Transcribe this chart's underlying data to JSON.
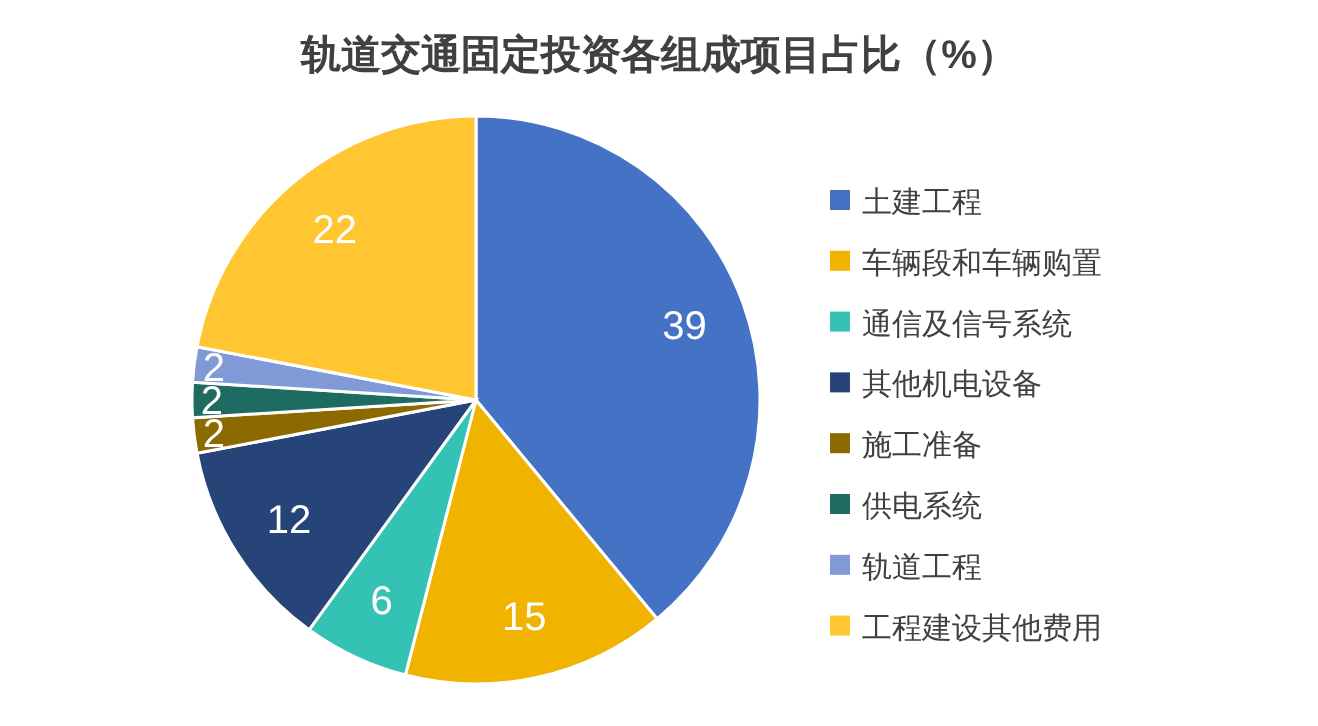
{
  "chart_data": {
    "type": "pie",
    "title": "轨道交通固定投资各组成项目占比（%）",
    "categories": [
      "土建工程",
      "车辆段和车辆购置",
      "通信及信号系统",
      "其他机电设备",
      "施工准备",
      "供电系统",
      "轨道工程",
      "工程建设其他费用"
    ],
    "values": [
      39,
      15,
      6,
      12,
      2,
      2,
      2,
      22
    ],
    "colors": [
      "#4472c4",
      "#f0b400",
      "#33c2b3",
      "#264478",
      "#8c6a00",
      "#1e6b62",
      "#7f9ad6",
      "#ffc632"
    ],
    "data_labels": true,
    "legend": "right"
  }
}
